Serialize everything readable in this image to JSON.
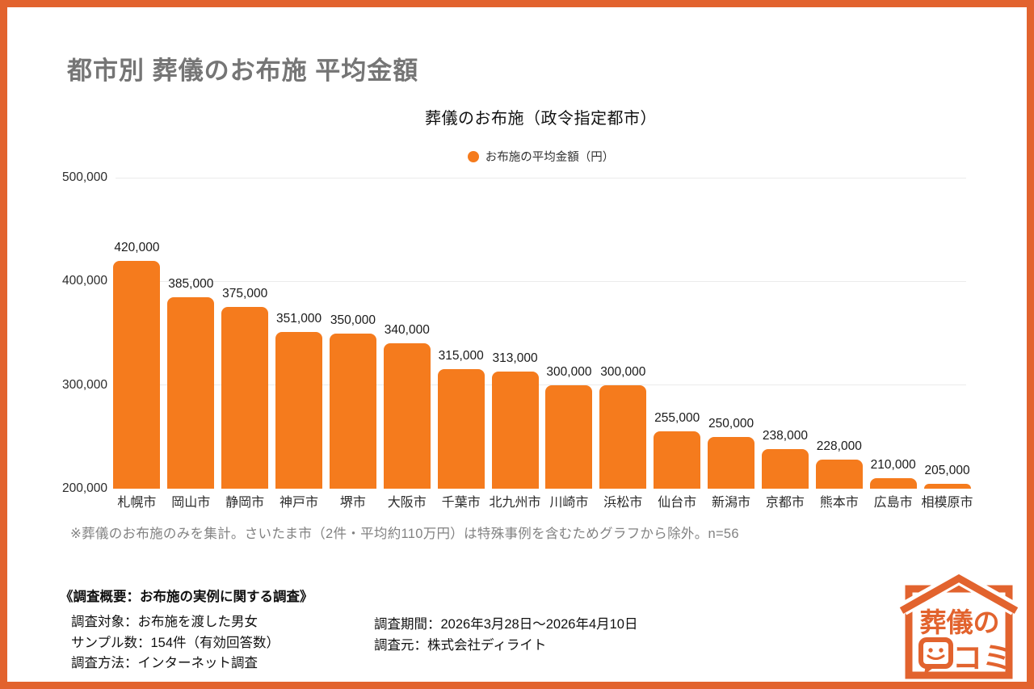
{
  "header": {
    "title": "都市別 葬儀のお布施 平均金額"
  },
  "chart": {
    "title": "葬儀のお布施（政令指定都市）",
    "legend_label": "お布施の平均金額（円）",
    "footnote": "※葬儀のお布施のみを集計。さいたま市（2件・平均約110万円）は特殊事例を含むためグラフから除外。n=56"
  },
  "chart_data": {
    "type": "bar",
    "title": "葬儀のお布施（政令指定都市）",
    "legend": [
      "お布施の平均金額（円）"
    ],
    "legend_position": "top",
    "categories": [
      "札幌市",
      "岡山市",
      "静岡市",
      "神戸市",
      "堺市",
      "大阪市",
      "千葉市",
      "北九州市",
      "川崎市",
      "浜松市",
      "仙台市",
      "新潟市",
      "京都市",
      "熊本市",
      "広島市",
      "相模原市"
    ],
    "values": [
      420000,
      385000,
      375000,
      351000,
      350000,
      340000,
      315000,
      313000,
      300000,
      300000,
      255000,
      250000,
      238000,
      228000,
      210000,
      205000
    ],
    "value_labels": [
      "420,000",
      "385,000",
      "375,000",
      "351,000",
      "350,000",
      "340,000",
      "315,000",
      "313,000",
      "300,000",
      "300,000",
      "255,000",
      "250,000",
      "238,000",
      "228,000",
      "210,000",
      "205,000"
    ],
    "xlabel": "",
    "ylabel": "",
    "ylim": [
      200000,
      500000
    ],
    "yticks": [
      200000,
      300000,
      400000,
      500000
    ],
    "ytick_labels": [
      "200,000",
      "300,000",
      "400,000",
      "500,000"
    ],
    "grid": true,
    "bar_color": "#f57b1d"
  },
  "survey": {
    "heading": "《調査概要：お布施の実例に関する調査》",
    "left_lines": [
      "調査対象：お布施を渡した男女",
      "サンプル数：154件（有効回答数）",
      "調査方法：インターネット調査"
    ],
    "right_lines": [
      "調査期間：2026年3月28日〜2026年4月10日",
      "調査元：株式会社ディライト"
    ]
  },
  "logo": {
    "line1": "葬儀の",
    "line2": "コミ"
  },
  "colors": {
    "bar_orange": "#f57b1d",
    "frame_orange": "#e2632e",
    "title_gray": "#757575",
    "grid_gray": "#ebebeb"
  }
}
